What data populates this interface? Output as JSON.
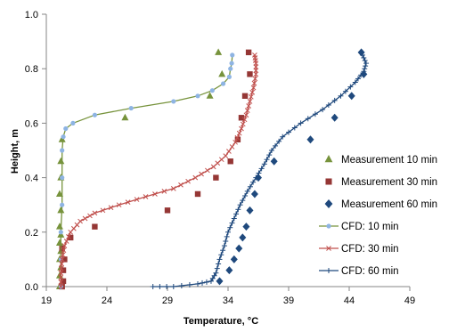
{
  "chart_data": {
    "type": "scatter",
    "xlabel": "Temperature, °C",
    "ylabel": "Height, m",
    "xlim": [
      19,
      49
    ],
    "ylim": [
      0,
      1.0
    ],
    "xticks": [
      19,
      24,
      29,
      34,
      39,
      44,
      49
    ],
    "yticks": [
      0.0,
      0.2,
      0.4,
      0.6,
      0.8,
      1.0
    ],
    "xtick_labels": [
      "19",
      "24",
      "29",
      "34",
      "39",
      "44",
      "49"
    ],
    "ytick_labels": [
      "0.0",
      "0.2",
      "0.4",
      "0.6",
      "0.8",
      "1.0"
    ],
    "grid": false,
    "legend_position": "right",
    "series": [
      {
        "name": "Measurement 10 min",
        "kind": "marker",
        "marker": "triangle",
        "color": "#77933C",
        "points": [
          [
            20.1,
            0.0
          ],
          [
            20.1,
            0.04
          ],
          [
            20.2,
            0.07
          ],
          [
            20.1,
            0.1
          ],
          [
            20.2,
            0.13
          ],
          [
            20.1,
            0.16
          ],
          [
            20.2,
            0.19
          ],
          [
            20.1,
            0.22
          ],
          [
            20.2,
            0.28
          ],
          [
            20.1,
            0.34
          ],
          [
            20.2,
            0.4
          ],
          [
            20.2,
            0.46
          ],
          [
            20.3,
            0.54
          ],
          [
            25.5,
            0.62
          ],
          [
            32.5,
            0.7
          ],
          [
            33.5,
            0.78
          ],
          [
            33.2,
            0.86
          ]
        ]
      },
      {
        "name": "Measurement 30 min",
        "kind": "marker",
        "marker": "square",
        "color": "#953735",
        "points": [
          [
            20.3,
            0.0
          ],
          [
            20.4,
            0.02
          ],
          [
            20.4,
            0.06
          ],
          [
            20.5,
            0.1
          ],
          [
            20.3,
            0.14
          ],
          [
            21.0,
            0.18
          ],
          [
            23.0,
            0.22
          ],
          [
            29.0,
            0.28
          ],
          [
            31.5,
            0.34
          ],
          [
            33.0,
            0.4
          ],
          [
            34.2,
            0.46
          ],
          [
            34.8,
            0.54
          ],
          [
            35.1,
            0.62
          ],
          [
            35.4,
            0.7
          ],
          [
            35.8,
            0.78
          ],
          [
            35.7,
            0.86
          ]
        ]
      },
      {
        "name": "Measurement 60 min",
        "kind": "marker",
        "marker": "diamond",
        "color": "#1F497D",
        "points": [
          [
            33.3,
            0.02
          ],
          [
            34.1,
            0.06
          ],
          [
            34.5,
            0.1
          ],
          [
            34.9,
            0.14
          ],
          [
            35.2,
            0.18
          ],
          [
            35.5,
            0.22
          ],
          [
            35.8,
            0.28
          ],
          [
            36.2,
            0.34
          ],
          [
            36.5,
            0.4
          ],
          [
            37.8,
            0.46
          ],
          [
            40.8,
            0.54
          ],
          [
            42.8,
            0.62
          ],
          [
            44.2,
            0.7
          ],
          [
            45.2,
            0.78
          ],
          [
            45.0,
            0.86
          ]
        ]
      },
      {
        "name": "CFD: 10 min",
        "kind": "line",
        "marker": "circle",
        "color": "#77933C",
        "marker_color": "#8EB4E3",
        "points": [
          [
            20.2,
            0.0
          ],
          [
            20.2,
            0.1
          ],
          [
            20.2,
            0.2
          ],
          [
            20.3,
            0.3
          ],
          [
            20.3,
            0.4
          ],
          [
            20.3,
            0.5
          ],
          [
            20.4,
            0.55
          ],
          [
            20.6,
            0.58
          ],
          [
            21.2,
            0.6
          ],
          [
            23.0,
            0.63
          ],
          [
            26.0,
            0.655
          ],
          [
            29.5,
            0.68
          ],
          [
            31.5,
            0.7
          ],
          [
            32.7,
            0.72
          ],
          [
            33.6,
            0.745
          ],
          [
            34.1,
            0.77
          ],
          [
            34.2,
            0.8
          ],
          [
            34.3,
            0.82
          ],
          [
            34.35,
            0.85
          ]
        ]
      },
      {
        "name": "CFD: 30 min",
        "kind": "line",
        "marker": "x",
        "color": "#C0504D",
        "points": [
          [
            20.2,
            0.0
          ],
          [
            20.2,
            0.05
          ],
          [
            20.3,
            0.1
          ],
          [
            20.5,
            0.15
          ],
          [
            21.0,
            0.2
          ],
          [
            21.8,
            0.24
          ],
          [
            23.0,
            0.27
          ],
          [
            25.0,
            0.3
          ],
          [
            27.2,
            0.33
          ],
          [
            29.5,
            0.36
          ],
          [
            31.3,
            0.4
          ],
          [
            32.8,
            0.44
          ],
          [
            33.8,
            0.48
          ],
          [
            34.6,
            0.53
          ],
          [
            35.1,
            0.58
          ],
          [
            35.5,
            0.63
          ],
          [
            35.8,
            0.68
          ],
          [
            36.1,
            0.73
          ],
          [
            36.3,
            0.78
          ],
          [
            36.3,
            0.82
          ],
          [
            36.2,
            0.85
          ]
        ]
      },
      {
        "name": "CFD: 60 min",
        "kind": "line",
        "marker": "plus",
        "color": "#1F497D",
        "points": [
          [
            27.8,
            0.0
          ],
          [
            29.5,
            0.0
          ],
          [
            31.5,
            0.01
          ],
          [
            32.6,
            0.02
          ],
          [
            33.0,
            0.05
          ],
          [
            33.3,
            0.1
          ],
          [
            33.7,
            0.15
          ],
          [
            34.0,
            0.2
          ],
          [
            34.5,
            0.25
          ],
          [
            35.0,
            0.3
          ],
          [
            35.6,
            0.35
          ],
          [
            36.3,
            0.4
          ],
          [
            37.0,
            0.45
          ],
          [
            37.6,
            0.5
          ],
          [
            38.5,
            0.55
          ],
          [
            40.0,
            0.6
          ],
          [
            41.8,
            0.65
          ],
          [
            43.3,
            0.7
          ],
          [
            44.5,
            0.75
          ],
          [
            45.2,
            0.79
          ],
          [
            45.4,
            0.82
          ],
          [
            45.1,
            0.85
          ]
        ]
      }
    ]
  }
}
